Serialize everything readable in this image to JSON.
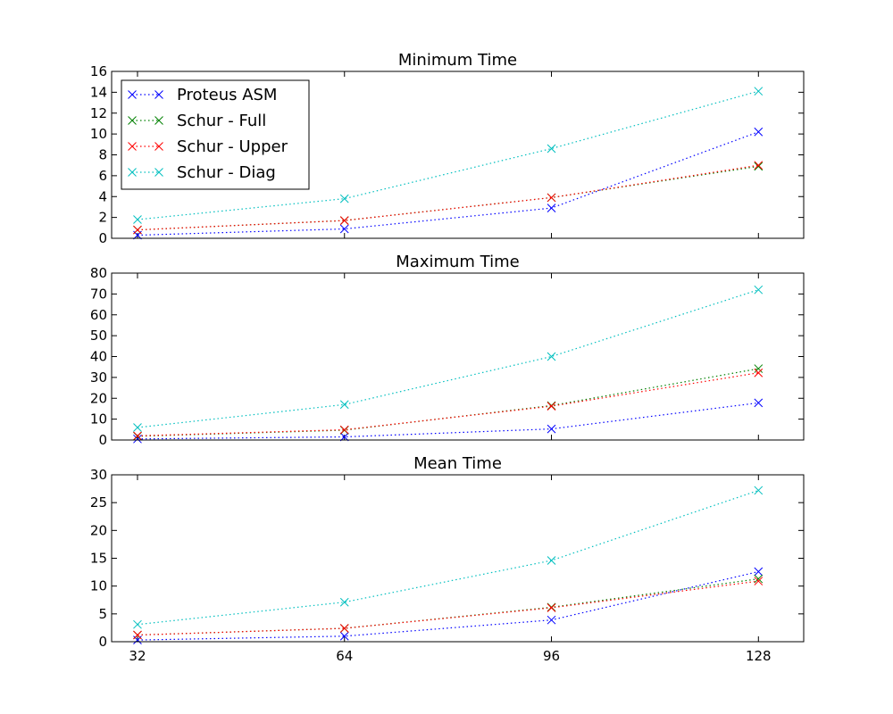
{
  "chart_data": [
    {
      "type": "line",
      "title": "Minimum Time",
      "x": [
        32,
        64,
        96,
        128
      ],
      "ylim": [
        0,
        16
      ],
      "yticks": [
        "0",
        "2",
        "4",
        "6",
        "8",
        "10",
        "12",
        "14",
        "16"
      ],
      "xticks": [],
      "legend": "top-left",
      "series": [
        {
          "name": "Proteus ASM",
          "color": "#0000ff",
          "values": [
            0.3,
            0.9,
            2.9,
            10.2
          ]
        },
        {
          "name": "Schur - Full",
          "color": "#008000",
          "values": [
            0.8,
            1.7,
            3.9,
            6.9
          ]
        },
        {
          "name": "Schur - Upper",
          "color": "#ff0000",
          "values": [
            0.8,
            1.7,
            3.9,
            7.0
          ]
        },
        {
          "name": "Schur - Diag",
          "color": "#00bfbf",
          "values": [
            1.8,
            3.8,
            8.6,
            14.1
          ]
        }
      ]
    },
    {
      "type": "line",
      "title": "Maximum Time",
      "x": [
        32,
        64,
        96,
        128
      ],
      "ylim": [
        0,
        80
      ],
      "yticks": [
        "0",
        "10",
        "20",
        "30",
        "40",
        "50",
        "60",
        "70",
        "80"
      ],
      "xticks": [],
      "series": [
        {
          "name": "Proteus ASM",
          "color": "#0000ff",
          "values": [
            0.5,
            1.5,
            5.3,
            17.8
          ]
        },
        {
          "name": "Schur - Full",
          "color": "#008000",
          "values": [
            1.8,
            4.7,
            16.5,
            34.2
          ]
        },
        {
          "name": "Schur - Upper",
          "color": "#ff0000",
          "values": [
            2.0,
            4.9,
            16.2,
            32.2
          ]
        },
        {
          "name": "Schur - Diag",
          "color": "#00bfbf",
          "values": [
            6.0,
            17.0,
            40.0,
            72.0
          ]
        }
      ]
    },
    {
      "type": "line",
      "title": "Mean Time",
      "x": [
        32,
        64,
        96,
        128
      ],
      "ylim": [
        0,
        30
      ],
      "yticks": [
        "0",
        "5",
        "10",
        "15",
        "20",
        "25",
        "30"
      ],
      "xticks": [
        "32",
        "64",
        "96",
        "128"
      ],
      "series": [
        {
          "name": "Proteus ASM",
          "color": "#0000ff",
          "values": [
            0.3,
            1.0,
            3.9,
            12.6
          ]
        },
        {
          "name": "Schur - Full",
          "color": "#008000",
          "values": [
            1.2,
            2.4,
            6.2,
            11.3
          ]
        },
        {
          "name": "Schur - Upper",
          "color": "#ff0000",
          "values": [
            1.2,
            2.4,
            6.1,
            10.9
          ]
        },
        {
          "name": "Schur - Diag",
          "color": "#00bfbf",
          "values": [
            3.1,
            7.1,
            14.6,
            27.2
          ]
        }
      ]
    }
  ]
}
